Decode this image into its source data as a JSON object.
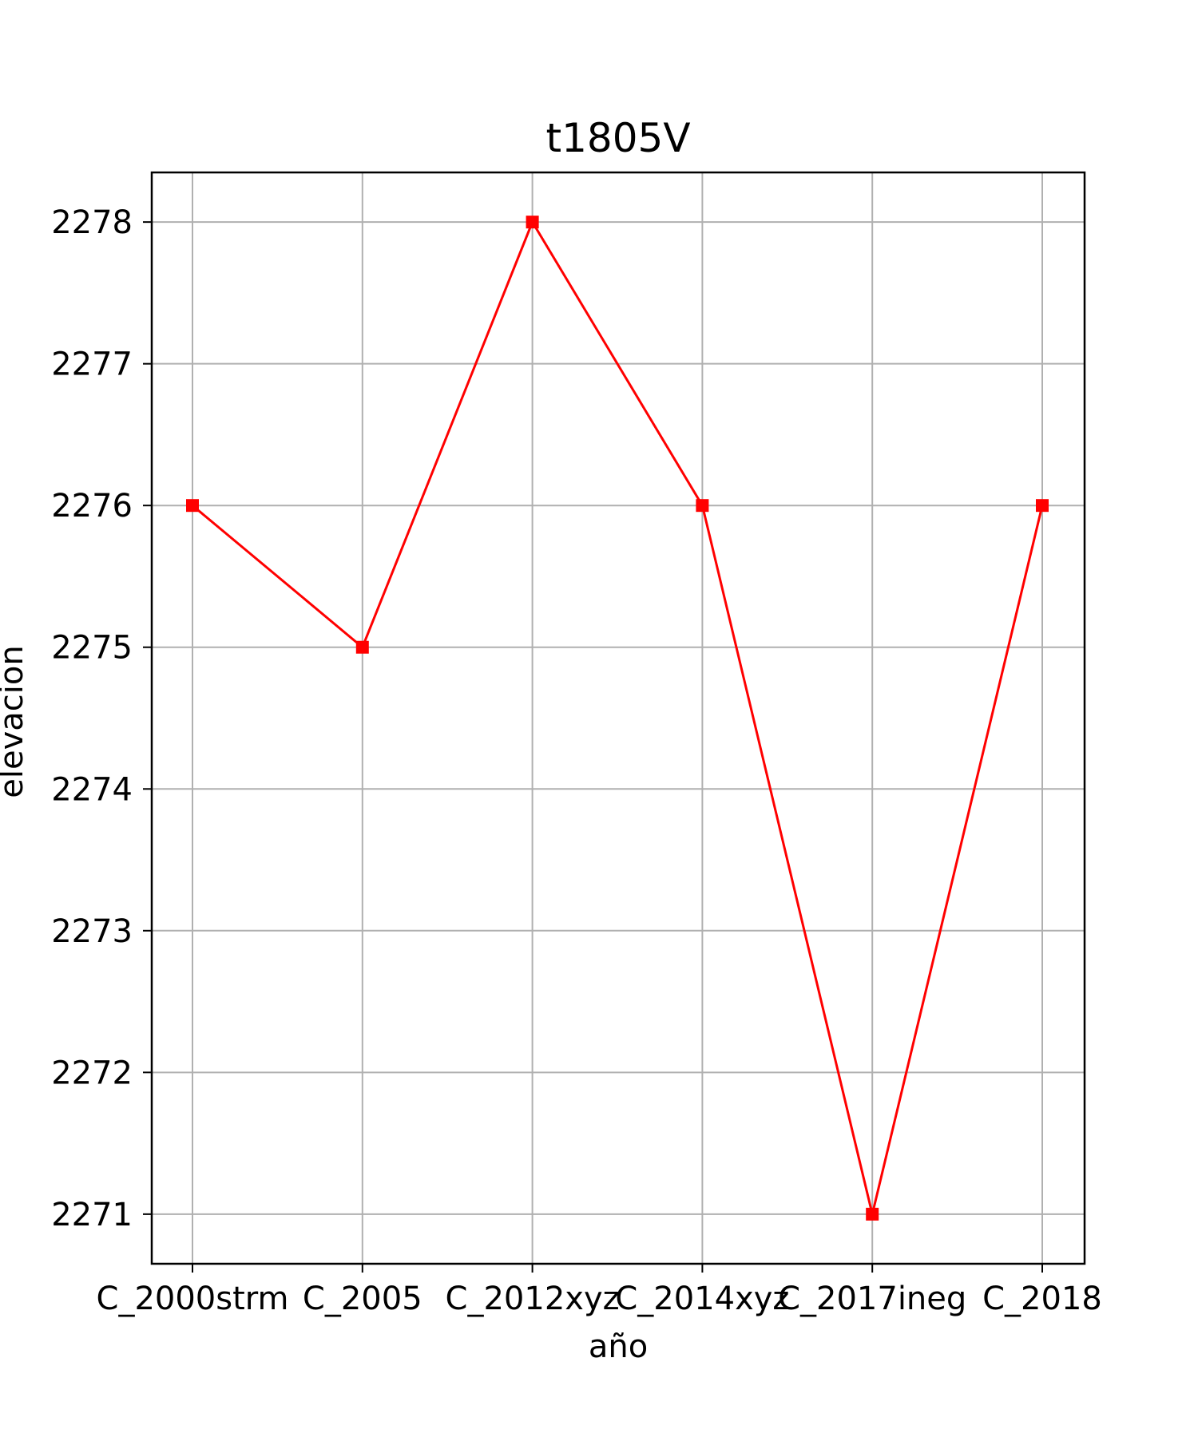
{
  "chart_data": {
    "type": "line",
    "title": "t1805V",
    "xlabel": "año",
    "ylabel": "elevacion",
    "categories": [
      "C_2000strm",
      "C_2005",
      "C_2012xyz",
      "C_2014xyz",
      "C_2017ineg",
      "C_2018"
    ],
    "series": [
      {
        "values": [
          2276,
          2275,
          2278,
          2276,
          2271,
          2276
        ],
        "color": "#ff0000",
        "marker": "square"
      }
    ],
    "yticks": [
      2271,
      2272,
      2273,
      2274,
      2275,
      2276,
      2277,
      2278
    ],
    "ylim": [
      2270.65,
      2278.35
    ],
    "grid": true,
    "grid_color": "#b0b0b0",
    "line_color": "#ff0000"
  }
}
